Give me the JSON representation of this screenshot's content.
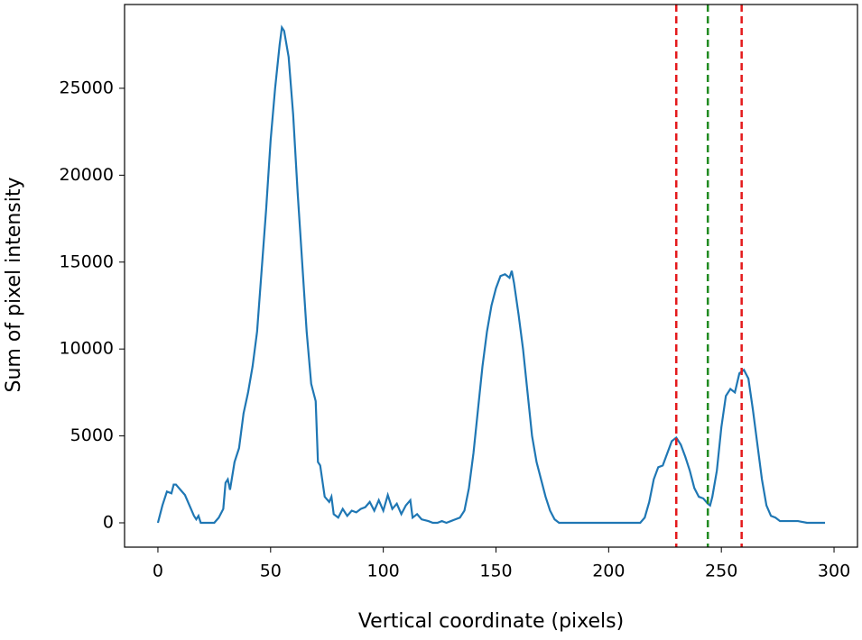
{
  "chart_data": {
    "type": "line",
    "x_label": "Vertical coordinate (pixels)",
    "y_label": "Sum of pixel intensity",
    "x": [
      0,
      2,
      4,
      6,
      7,
      8,
      10,
      12,
      14,
      16,
      17,
      18,
      19,
      20,
      25,
      27,
      29,
      30,
      31,
      32,
      34,
      36,
      38,
      40,
      42,
      44,
      46,
      48,
      50,
      52,
      54,
      55,
      56,
      58,
      60,
      62,
      64,
      66,
      68,
      70,
      71,
      72,
      74,
      76,
      77,
      78,
      80,
      82,
      84,
      86,
      88,
      90,
      92,
      94,
      96,
      98,
      100,
      102,
      104,
      106,
      108,
      110,
      112,
      113,
      115,
      117,
      120,
      122,
      124,
      126,
      128,
      130,
      132,
      134,
      136,
      138,
      140,
      142,
      144,
      146,
      148,
      150,
      152,
      154,
      156,
      157,
      158,
      160,
      162,
      164,
      166,
      168,
      170,
      172,
      174,
      176,
      178,
      185,
      195,
      205,
      214,
      216,
      218,
      220,
      222,
      224,
      226,
      228,
      230,
      232,
      234,
      236,
      238,
      240,
      242,
      244,
      245,
      246,
      248,
      250,
      252,
      254,
      256,
      258,
      260,
      262,
      264,
      266,
      268,
      270,
      272,
      274,
      276,
      280,
      284,
      288,
      292,
      296
    ],
    "series": [
      {
        "color": "#1f77b4",
        "values": [
          0,
          1000,
          1800,
          1700,
          2200,
          2200,
          1900,
          1600,
          1000,
          400,
          200,
          400,
          0,
          0,
          0,
          300,
          800,
          2300,
          2500,
          1900,
          3500,
          4300,
          6300,
          7500,
          9000,
          11000,
          14500,
          18000,
          22000,
          25000,
          27500,
          28500,
          28300,
          26800,
          23500,
          19000,
          15000,
          11000,
          8000,
          7000,
          3500,
          3300,
          1500,
          1200,
          1500,
          500,
          300,
          800,
          400,
          700,
          600,
          800,
          900,
          1200,
          700,
          1300,
          700,
          1600,
          800,
          1100,
          500,
          1000,
          1300,
          300,
          500,
          200,
          100,
          0,
          0,
          100,
          0,
          100,
          200,
          300,
          700,
          2000,
          4000,
          6500,
          9000,
          11000,
          12500,
          13500,
          14200,
          14300,
          14100,
          14500,
          13800,
          12000,
          10000,
          7500,
          5000,
          3500,
          2500,
          1500,
          700,
          200,
          0,
          0,
          0,
          0,
          0,
          300,
          1200,
          2500,
          3200,
          3300,
          4000,
          4700,
          4900,
          4500,
          3800,
          3000,
          2000,
          1500,
          1400,
          1100,
          1000,
          1500,
          3000,
          5500,
          7300,
          7700,
          7500,
          8600,
          8800,
          8300,
          6500,
          4500,
          2500,
          1000,
          400,
          300,
          100,
          100,
          100,
          0,
          0,
          0
        ]
      }
    ],
    "vlines": [
      {
        "x": 230,
        "color": "#e41a1c"
      },
      {
        "x": 244,
        "color": "#228b22"
      },
      {
        "x": 259,
        "color": "#e41a1c"
      }
    ],
    "xlim": [
      -14.8,
      310.4
    ],
    "ylim": [
      -1400,
      29820
    ],
    "xticks": [
      0,
      50,
      100,
      150,
      200,
      250,
      300
    ],
    "yticks": [
      0,
      5000,
      10000,
      15000,
      20000,
      25000
    ]
  }
}
